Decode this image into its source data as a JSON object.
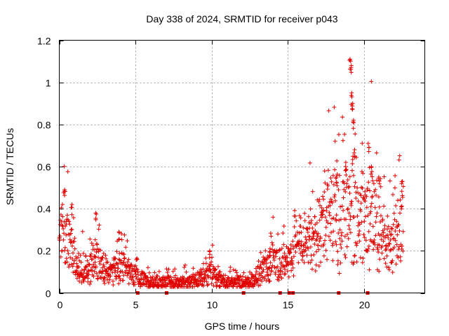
{
  "chart_data": {
    "type": "scatter",
    "title": "Day 338 of 2024, SRMTID for receiver p043",
    "xlabel": "GPS time / hours",
    "ylabel": "SRMTID / TECUs",
    "xlim": [
      0,
      24
    ],
    "ylim": [
      0,
      1.2
    ],
    "grid": true,
    "marker": "plus",
    "color": "#e00000",
    "x_ticks": [
      0,
      5,
      10,
      15,
      20
    ],
    "x_tick_labels": [
      "0",
      "5",
      "10",
      "15",
      "20"
    ],
    "y_ticks": [
      0,
      0.2,
      0.4,
      0.6,
      0.8,
      1.0,
      1.2
    ],
    "y_tick_labels": [
      "0",
      "0.2",
      "0.4",
      "0.6",
      "0.8",
      "1",
      "1.2"
    ],
    "trend": {
      "description": "approximate median SRMTID vs hour",
      "x": [
        0,
        0.3,
        0.6,
        0.9,
        1.2,
        1.6,
        2.0,
        2.3,
        2.6,
        3.0,
        3.4,
        3.8,
        4.2,
        4.6,
        5.0,
        5.5,
        6.0,
        6.5,
        7.0,
        7.5,
        8.0,
        8.5,
        9.0,
        9.5,
        10.0,
        10.5,
        11.0,
        11.5,
        12.0,
        12.5,
        13.0,
        13.5,
        14.0,
        14.5,
        15.0,
        15.5,
        16.0,
        16.5,
        17.0,
        17.5,
        18.0,
        18.5,
        19.0,
        19.5,
        20.0,
        20.5,
        21.0,
        21.5,
        22.0,
        22.3,
        22.6
      ],
      "y": [
        0.25,
        0.28,
        0.26,
        0.2,
        0.12,
        0.1,
        0.12,
        0.18,
        0.15,
        0.1,
        0.09,
        0.12,
        0.14,
        0.1,
        0.07,
        0.06,
        0.05,
        0.05,
        0.05,
        0.05,
        0.05,
        0.05,
        0.06,
        0.07,
        0.09,
        0.06,
        0.05,
        0.05,
        0.05,
        0.05,
        0.08,
        0.12,
        0.15,
        0.13,
        0.14,
        0.24,
        0.22,
        0.25,
        0.28,
        0.35,
        0.38,
        0.34,
        0.4,
        0.42,
        0.35,
        0.38,
        0.3,
        0.22,
        0.25,
        0.3,
        0.32
      ]
    },
    "spikes": [
      {
        "x": 0.35,
        "y": 0.49
      },
      {
        "x": 0.8,
        "y": 0.42
      },
      {
        "x": 2.4,
        "y": 0.38
      },
      {
        "x": 3.9,
        "y": 0.29
      },
      {
        "x": 9.9,
        "y": 0.2
      },
      {
        "x": 13.8,
        "y": 0.21
      },
      {
        "x": 18.2,
        "y": 0.55
      },
      {
        "x": 18.8,
        "y": 0.62
      },
      {
        "x": 19.1,
        "y": 1.11
      },
      {
        "x": 19.15,
        "y": 1.08
      },
      {
        "x": 19.2,
        "y": 0.95
      },
      {
        "x": 19.25,
        "y": 0.9
      },
      {
        "x": 19.3,
        "y": 0.82
      },
      {
        "x": 19.4,
        "y": 0.68
      },
      {
        "x": 20.3,
        "y": 0.71
      },
      {
        "x": 20.5,
        "y": 0.6
      },
      {
        "x": 21.0,
        "y": 0.55
      },
      {
        "x": 22.5,
        "y": 0.53
      }
    ],
    "zero_markers_x": [
      5.15,
      7.05,
      12.1,
      14.5,
      15.1,
      15.35,
      18.35,
      20.25
    ]
  }
}
